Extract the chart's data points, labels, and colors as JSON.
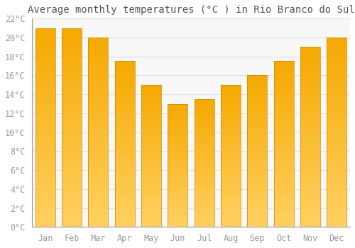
{
  "title": "Average monthly temperatures (°C ) in Rio Branco do Sul",
  "months": [
    "Jan",
    "Feb",
    "Mar",
    "Apr",
    "May",
    "Jun",
    "Jul",
    "Aug",
    "Sep",
    "Oct",
    "Nov",
    "Dec"
  ],
  "values": [
    21.0,
    21.0,
    20.0,
    17.5,
    15.0,
    13.0,
    13.5,
    15.0,
    16.0,
    17.5,
    19.0,
    20.0
  ],
  "bar_color_top": "#F5A800",
  "bar_color_bottom": "#FFD060",
  "bar_edge_color": "#CC8800",
  "ylim": [
    0,
    22
  ],
  "ytick_step": 2,
  "background_color": "#ffffff",
  "plot_bg_color": "#f8f8f8",
  "grid_color": "#e0e0e0",
  "title_fontsize": 10,
  "tick_fontsize": 8.5,
  "font_family": "monospace"
}
